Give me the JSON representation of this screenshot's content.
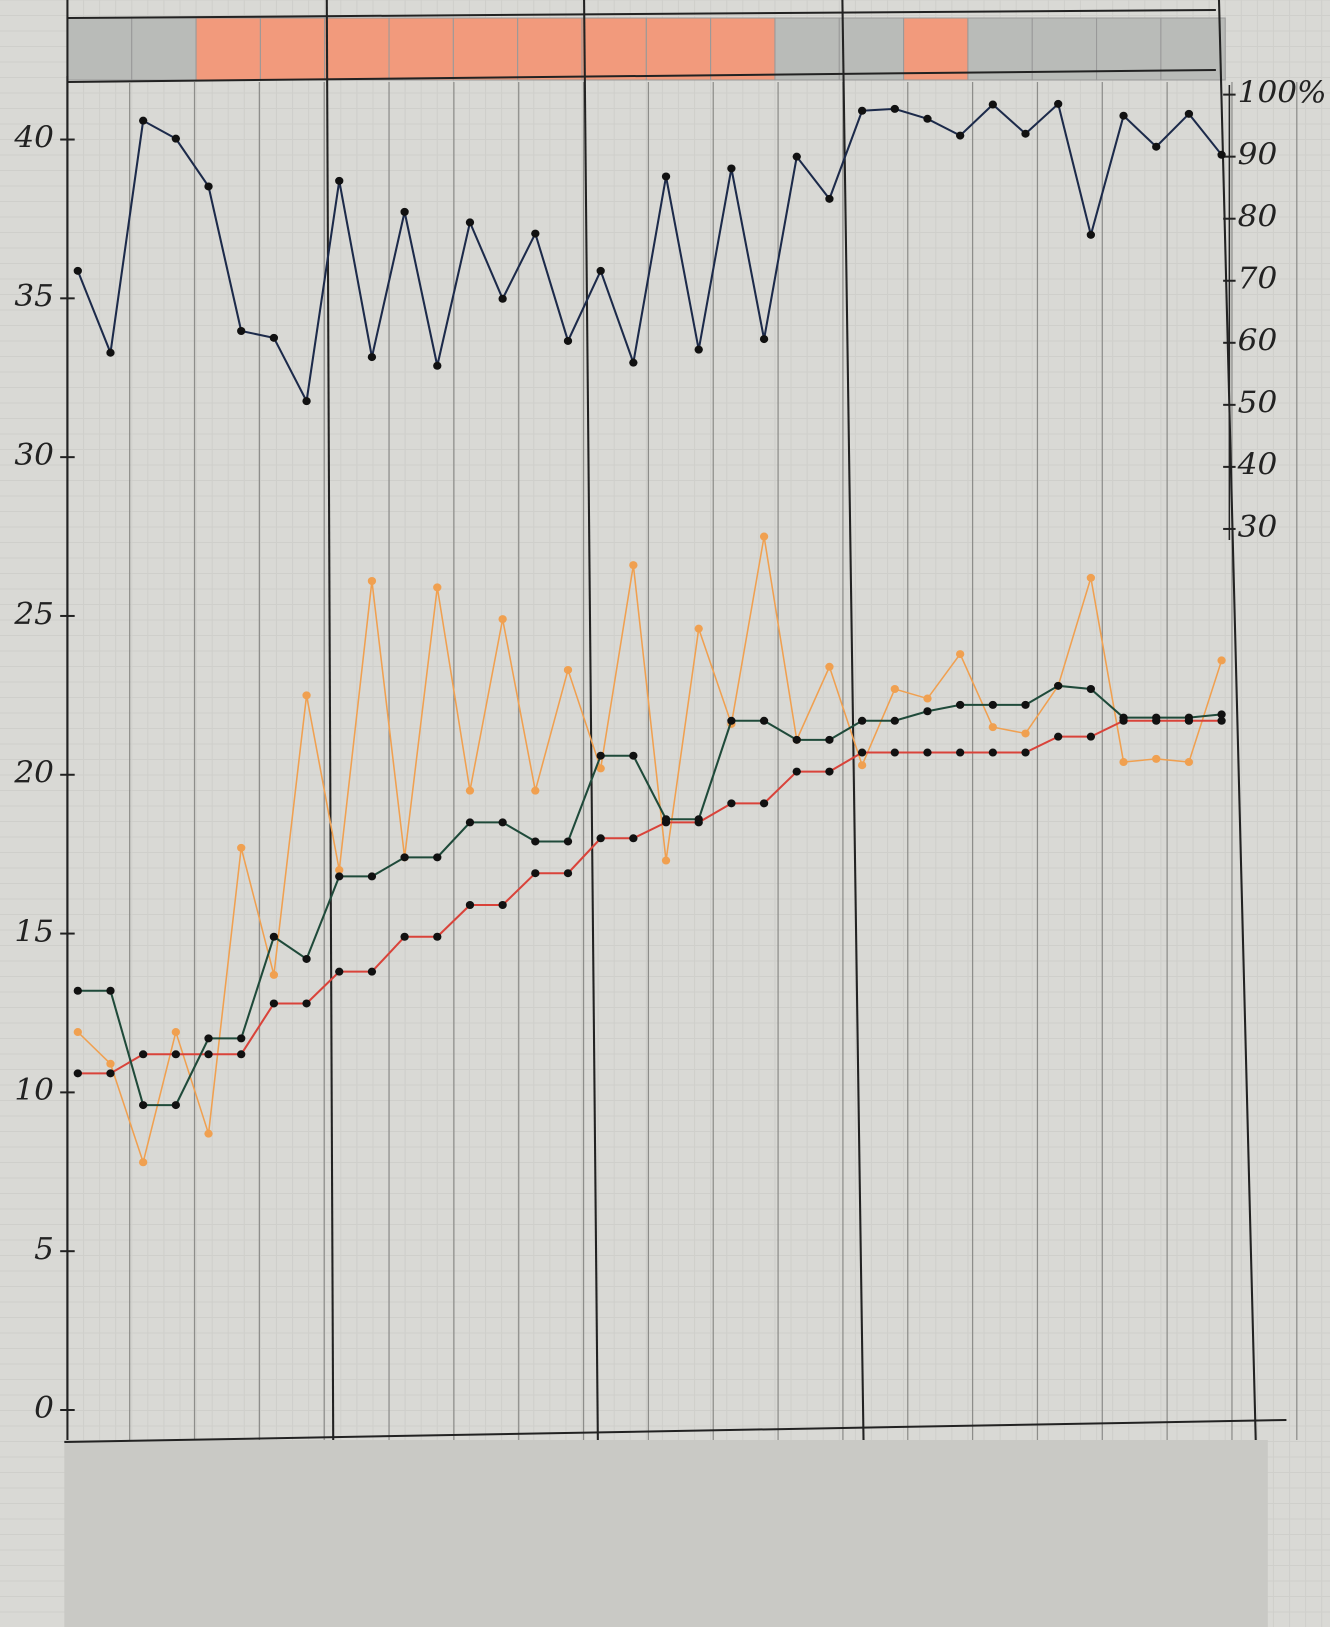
{
  "chart_data": {
    "type": "line",
    "categories": [
      null,
      null,
      null,
      null,
      null,
      null,
      null,
      null,
      null,
      null,
      null,
      null,
      null,
      null,
      null,
      null,
      null,
      null,
      null,
      null,
      null,
      null,
      null,
      null,
      null,
      null,
      null,
      null,
      null,
      null,
      null,
      null,
      null,
      null,
      null,
      null
    ],
    "ylim": [
      0,
      42
    ],
    "yticks": [
      0,
      5,
      10,
      15,
      20,
      25,
      30,
      35,
      40
    ],
    "y2lim": [
      -112,
      103
    ],
    "y2ticks": [
      {
        "value": 100,
        "label": "100%"
      },
      90,
      80,
      70,
      60,
      50,
      40,
      30
    ],
    "grid": true,
    "series": [
      {
        "color": "#1c2a4a",
        "axis": "y2",
        "values": [
          71.6,
          58.4,
          95.8,
          92.9,
          85.2,
          61.9,
          60.8,
          50.6,
          86.1,
          57.7,
          81.1,
          56.3,
          79.4,
          67.1,
          77.6,
          60.3,
          71.6,
          56.8,
          86.8,
          58.9,
          88.1,
          60.6,
          90,
          83.2,
          97.4,
          97.7,
          96.1,
          93.4,
          98.4,
          93.7,
          98.5,
          77.4,
          96.6,
          91.6,
          96.9,
          90.3
        ]
      },
      {
        "color": "#f0a050",
        "values": [
          11.9,
          10.9,
          7.8,
          11.9,
          8.7,
          17.7,
          13.7,
          22.5,
          17.0,
          26.1,
          17.4,
          25.9,
          19.5,
          24.9,
          19.5,
          23.3,
          20.2,
          26.6,
          17.3,
          24.6,
          21.6,
          27.5,
          21.1,
          23.4,
          20.3,
          22.7,
          22.4,
          23.8,
          21.5,
          21.3,
          22.8,
          26.2,
          20.4,
          20.5,
          20.4,
          23.6
        ]
      },
      {
        "color": "#d9433a",
        "values": [
          10.6,
          10.6,
          11.2,
          11.2,
          11.2,
          11.2,
          12.8,
          12.8,
          13.8,
          13.8,
          14.9,
          14.9,
          15.9,
          15.9,
          16.9,
          16.9,
          18.0,
          18.0,
          18.5,
          18.5,
          19.1,
          19.1,
          20.1,
          20.1,
          20.7,
          20.7,
          20.7,
          20.7,
          20.7,
          20.7,
          21.2,
          21.2,
          21.7,
          21.7,
          21.7,
          21.7
        ]
      },
      {
        "color": "#1f4a3a",
        "values": [
          13.2,
          13.2,
          9.6,
          9.6,
          11.7,
          11.7,
          14.9,
          14.2,
          16.8,
          16.8,
          17.4,
          17.4,
          18.5,
          18.5,
          17.9,
          17.9,
          20.6,
          20.6,
          18.6,
          18.6,
          21.7,
          21.7,
          21.1,
          21.1,
          21.7,
          21.7,
          22.0,
          22.2,
          22.2,
          22.2,
          22.8,
          22.7,
          21.8,
          21.8,
          21.8,
          21.9
        ]
      }
    ]
  }
}
